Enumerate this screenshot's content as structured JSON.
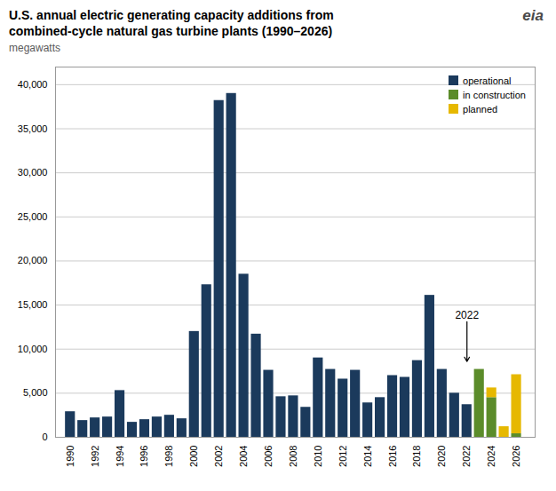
{
  "chart_data": {
    "type": "bar",
    "title": "U.S. annual electric generating capacity additions from\ncombined-cycle natural gas turbine plants (1990–2026)",
    "subtitle": "megawatts",
    "x": [
      1990,
      1991,
      1992,
      1993,
      1994,
      1995,
      1996,
      1997,
      1998,
      1999,
      2000,
      2001,
      2002,
      2003,
      2004,
      2005,
      2006,
      2007,
      2008,
      2009,
      2010,
      2011,
      2012,
      2013,
      2014,
      2015,
      2016,
      2017,
      2018,
      2019,
      2020,
      2021,
      2022,
      2023,
      2024,
      2025,
      2026
    ],
    "series": [
      {
        "name": "operational",
        "color": "#1b3a5c",
        "values": [
          2900,
          1900,
          2200,
          2300,
          5300,
          1700,
          2000,
          2300,
          2500,
          2100,
          12000,
          17300,
          38200,
          39000,
          18500,
          11700,
          7600,
          4600,
          4700,
          3400,
          9000,
          7700,
          6600,
          7600,
          3900,
          4500,
          7000,
          6800,
          8700,
          16100,
          7700,
          5000,
          3700,
          null,
          null,
          null,
          null
        ]
      },
      {
        "name": "in construction",
        "color": "#5b8c2a",
        "values": [
          null,
          null,
          null,
          null,
          null,
          null,
          null,
          null,
          null,
          null,
          null,
          null,
          null,
          null,
          null,
          null,
          null,
          null,
          null,
          null,
          null,
          null,
          null,
          null,
          null,
          null,
          null,
          null,
          null,
          null,
          null,
          null,
          null,
          7700,
          4500,
          null,
          400
        ]
      },
      {
        "name": "planned",
        "color": "#e6b800",
        "values": [
          null,
          null,
          null,
          null,
          null,
          null,
          null,
          null,
          null,
          null,
          null,
          null,
          null,
          null,
          null,
          null,
          null,
          null,
          null,
          null,
          null,
          null,
          null,
          null,
          null,
          null,
          null,
          null,
          null,
          null,
          null,
          null,
          null,
          null,
          1100,
          1200,
          6700
        ]
      }
    ],
    "stacked": true,
    "xlim": [
      1988.8,
      2027.5
    ],
    "xticks": [
      1990,
      1992,
      1994,
      1996,
      1998,
      2000,
      2002,
      2004,
      2006,
      2008,
      2010,
      2012,
      2014,
      2016,
      2018,
      2020,
      2022,
      2024,
      2026
    ],
    "ylim": [
      0,
      42000
    ],
    "yticks": [
      0,
      {
        "value": 5000,
        "label": "5,000"
      },
      {
        "value": 10000,
        "label": "10,000"
      },
      {
        "value": 15000,
        "label": "15,000"
      },
      {
        "value": 20000,
        "label": "20,000"
      },
      {
        "value": 25000,
        "label": "25,000"
      },
      {
        "value": 30000,
        "label": "30,000"
      },
      {
        "value": 35000,
        "label": "35,000"
      },
      {
        "value": 40000,
        "label": "40,000"
      }
    ],
    "grid": true,
    "legend": "upper right",
    "annotations": [
      {
        "text": "2022",
        "x": 2022,
        "y": 8500
      },
      {
        "text": "eia"
      }
    ]
  }
}
